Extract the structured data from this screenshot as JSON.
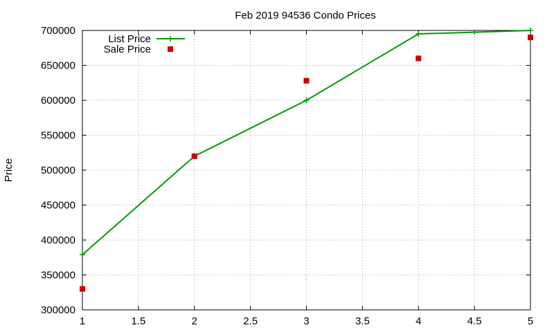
{
  "chart_data": {
    "type": "line",
    "title": "Feb 2019 94536 Condo Prices",
    "xlabel": "",
    "ylabel": "Price",
    "xlim": [
      1,
      5
    ],
    "ylim": [
      300000,
      700000
    ],
    "x_ticks": [
      1,
      1.5,
      2,
      2.5,
      3,
      3.5,
      4,
      4.5,
      5
    ],
    "y_ticks": [
      300000,
      350000,
      400000,
      450000,
      500000,
      550000,
      600000,
      650000,
      700000
    ],
    "x_tick_labels": [
      "1",
      "1.5",
      "2",
      "2.5",
      "3",
      "3.5",
      "4",
      "4.5",
      "5"
    ],
    "y_tick_labels": [
      "300000",
      "350000",
      "400000",
      "450000",
      "500000",
      "550000",
      "600000",
      "650000",
      "700000"
    ],
    "grid": true,
    "legend_position": "top-left",
    "series": [
      {
        "name": "List Price",
        "style": "linespoints",
        "marker": "plus",
        "color": "#009900",
        "x": [
          1,
          2,
          3,
          4,
          5
        ],
        "y": [
          379000,
          520000,
          600000,
          695000,
          700000
        ]
      },
      {
        "name": "Sale Price",
        "style": "points",
        "marker": "square",
        "color": "#cc0000",
        "x": [
          1,
          2,
          3,
          4,
          5
        ],
        "y": [
          330000,
          520000,
          628000,
          660000,
          690000
        ]
      }
    ]
  }
}
